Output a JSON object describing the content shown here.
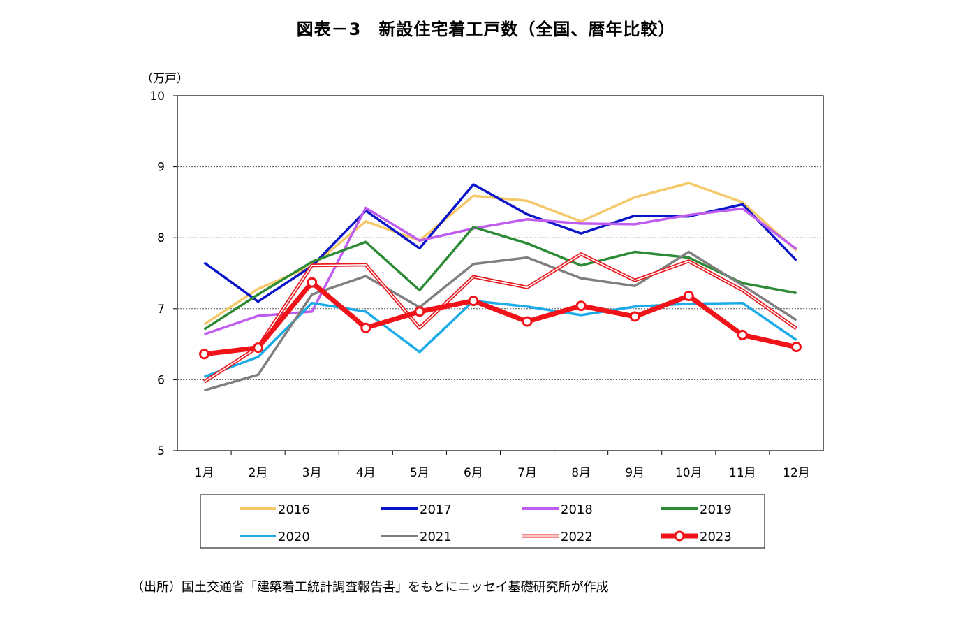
{
  "title": "図表－3　新設住宅着工戸数（全国、暦年比較）",
  "unit_label": "（万戸）",
  "source_note": "（出所）国土交通省「建築着工統計調査報告書」をもとにニッセイ基礎研究所が作成",
  "chart_data": {
    "type": "line",
    "ylabel": "（万戸）",
    "ylim": [
      5,
      10
    ],
    "yticks": [
      5,
      6,
      7,
      8,
      9,
      10
    ],
    "grid": true,
    "legend_position": "bottom",
    "categories": [
      "1月",
      "2月",
      "3月",
      "4月",
      "5月",
      "6月",
      "7月",
      "8月",
      "9月",
      "10月",
      "11月",
      "12月"
    ],
    "series": [
      {
        "name": "2016",
        "color": "#F5C96A",
        "style": "solid",
        "values": [
          6.78,
          7.28,
          7.6,
          8.23,
          7.96,
          8.59,
          8.52,
          8.23,
          8.57,
          8.77,
          8.5,
          7.82
        ]
      },
      {
        "name": "2017",
        "color": "#0A14C8",
        "style": "solid",
        "values": [
          7.65,
          7.1,
          7.6,
          8.38,
          7.85,
          8.75,
          8.33,
          8.06,
          8.31,
          8.3,
          8.47,
          7.68
        ]
      },
      {
        "name": "2018",
        "color": "#C05CF0",
        "style": "solid",
        "values": [
          6.64,
          6.9,
          6.96,
          8.42,
          7.96,
          8.13,
          8.26,
          8.2,
          8.19,
          8.32,
          8.41,
          7.84
        ]
      },
      {
        "name": "2019",
        "color": "#2E8B35",
        "style": "solid",
        "values": [
          6.71,
          7.2,
          7.66,
          7.94,
          7.26,
          8.15,
          7.92,
          7.61,
          7.8,
          7.72,
          7.36,
          7.22
        ]
      },
      {
        "name": "2020",
        "color": "#1AABE8",
        "style": "solid",
        "values": [
          6.04,
          6.32,
          7.08,
          6.96,
          6.39,
          7.11,
          7.03,
          6.91,
          7.03,
          7.07,
          7.08,
          6.56
        ]
      },
      {
        "name": "2021",
        "color": "#7F7F7F",
        "style": "solid",
        "values": [
          5.85,
          6.07,
          7.2,
          7.46,
          7.02,
          7.63,
          7.72,
          7.43,
          7.32,
          7.8,
          7.33,
          6.84
        ]
      },
      {
        "name": "2022",
        "color": "#E8191E",
        "style": "double",
        "values": [
          5.97,
          6.46,
          7.61,
          7.62,
          6.73,
          7.45,
          7.3,
          7.77,
          7.4,
          7.67,
          7.26,
          6.72
        ]
      },
      {
        "name": "2023",
        "color": "#F0141A",
        "style": "thick-markers",
        "values": [
          6.36,
          6.45,
          7.37,
          6.73,
          6.96,
          7.11,
          6.82,
          7.04,
          6.89,
          7.18,
          6.63,
          6.46
        ]
      }
    ]
  }
}
